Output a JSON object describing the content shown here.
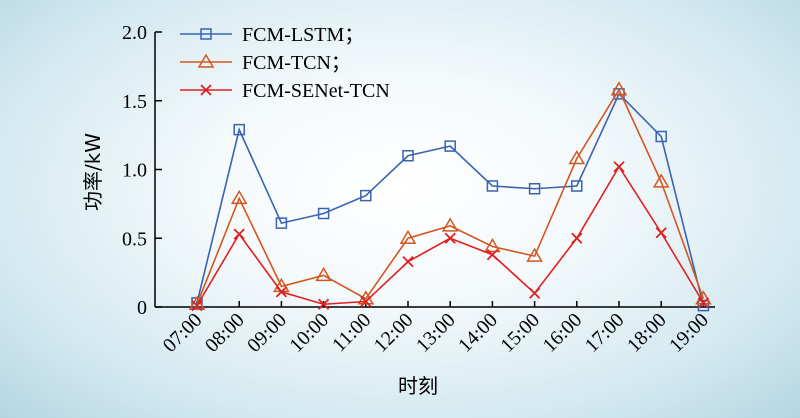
{
  "chart_data": {
    "type": "line",
    "title": "",
    "xlabel": "时刻",
    "ylabel": "功率/kW",
    "categories": [
      "07:00",
      "08:00",
      "09:00",
      "10:00",
      "11:00",
      "12:00",
      "13:00",
      "14:00",
      "15:00",
      "16:00",
      "17:00",
      "18:00",
      "19:00"
    ],
    "ylim": [
      0,
      2.0
    ],
    "yticks": [
      "0",
      "0.5",
      "1.0",
      "1.5",
      "2.0"
    ],
    "grid": false,
    "legend_position": "top-left",
    "series": [
      {
        "name": "FCM-LSTM；",
        "color": "#3a63b0",
        "marker": "square",
        "values": [
          0.03,
          1.29,
          0.61,
          0.68,
          0.81,
          1.1,
          1.17,
          0.88,
          0.86,
          0.88,
          1.55,
          1.24,
          0.01
        ]
      },
      {
        "name": "FCM-TCN；",
        "color": "#d4561f",
        "marker": "triangle",
        "values": [
          0.02,
          0.79,
          0.15,
          0.23,
          0.06,
          0.5,
          0.59,
          0.44,
          0.37,
          1.08,
          1.58,
          0.91,
          0.06
        ]
      },
      {
        "name": "FCM-SENet-TCN",
        "color": "#e02020",
        "marker": "x",
        "values": [
          0.01,
          0.53,
          0.11,
          0.02,
          0.04,
          0.33,
          0.5,
          0.38,
          0.1,
          0.5,
          1.02,
          0.54,
          0.03
        ]
      }
    ]
  }
}
